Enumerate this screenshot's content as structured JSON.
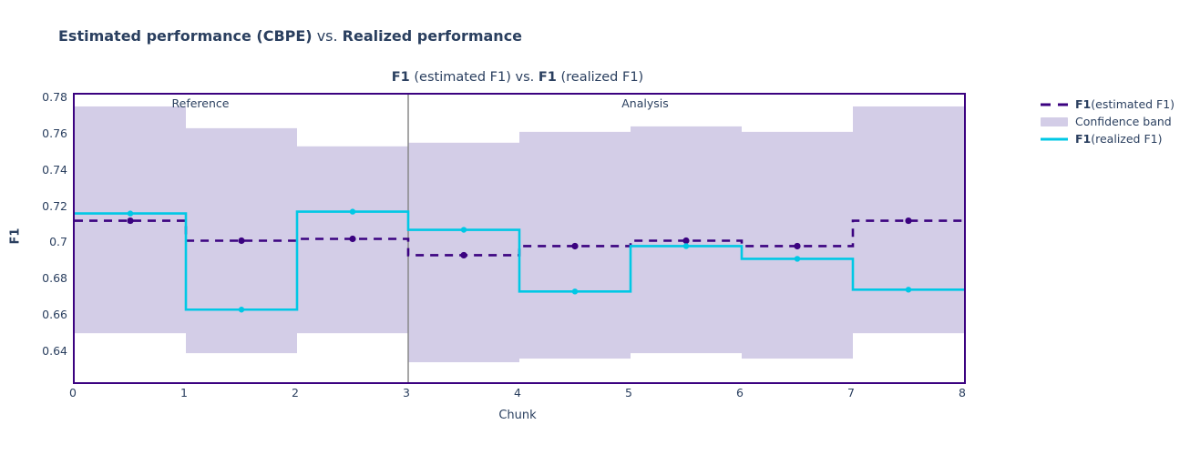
{
  "header": {
    "title_bold_left": "Estimated performance (CBPE)",
    "title_separator": " vs. ",
    "title_bold_right": "Realized performance"
  },
  "chart": {
    "title_metric_left": "F1",
    "title_middle": " (estimated F1) vs. ",
    "title_metric_right": "F1",
    "title_suffix": " (realized F1)",
    "xlabel": "Chunk",
    "ylabel": "F1"
  },
  "legend": {
    "items": [
      {
        "key": "estimated",
        "swatch": "dashed-line",
        "color": "#3b0280",
        "label_bold": "F1",
        "label_rest": " (estimated F1)"
      },
      {
        "key": "confidence-band",
        "swatch": "band",
        "color": "#d3cde7",
        "label_bold": "",
        "label_rest": "Confidence band"
      },
      {
        "key": "realized",
        "swatch": "solid-line",
        "color": "#00c8e5",
        "label_bold": "F1",
        "label_rest": " (realized F1)"
      }
    ]
  },
  "chart_data": {
    "type": "line",
    "subtype": "step-plot-with-confidence-band",
    "title": "F1 (estimated F1) vs. F1 (realized F1)",
    "xlabel": "Chunk",
    "ylabel": "F1",
    "xlim": [
      0,
      8
    ],
    "ylim": [
      0.624,
      0.7825
    ],
    "x_ticks": [
      {
        "label": "0",
        "value": 0
      },
      {
        "label": "1",
        "value": 1
      },
      {
        "label": "2",
        "value": 2
      },
      {
        "label": "3",
        "value": 3
      },
      {
        "label": "4",
        "value": 4
      },
      {
        "label": "5",
        "value": 5
      },
      {
        "label": "6",
        "value": 6
      },
      {
        "label": "7",
        "value": 7
      },
      {
        "label": "8",
        "value": 8
      }
    ],
    "y_ticks": [
      {
        "label": "0.78",
        "value": 0.78
      },
      {
        "label": "0.76",
        "value": 0.76
      },
      {
        "label": "0.74",
        "value": 0.74
      },
      {
        "label": "0.72",
        "value": 0.72
      },
      {
        "label": "0.7",
        "value": 0.7
      },
      {
        "label": "0.68",
        "value": 0.68
      },
      {
        "label": "0.66",
        "value": 0.66
      },
      {
        "label": "0.64",
        "value": 0.64
      }
    ],
    "regions": [
      {
        "label": "Reference",
        "start": 0,
        "end": 3
      },
      {
        "label": "Analysis",
        "start": 3,
        "end": 8
      }
    ],
    "divider_x": 3,
    "chunk_midpoints": [
      0.5,
      1.5,
      2.5,
      3.5,
      4.5,
      5.5,
      6.5,
      7.5
    ],
    "series": [
      {
        "key": "estimated",
        "name": "F1 (estimated F1)",
        "color": "#3b0280",
        "dash": true,
        "values": [
          0.713,
          0.702,
          0.703,
          0.694,
          0.699,
          0.702,
          0.699,
          0.713
        ]
      },
      {
        "key": "realized",
        "name": "F1 (realized F1)",
        "color": "#00c8e5",
        "dash": false,
        "values": [
          0.717,
          0.664,
          0.718,
          0.708,
          0.674,
          0.699,
          0.692,
          0.675
        ]
      }
    ],
    "confidence_band": {
      "name": "Confidence band",
      "color": "#d3cde7",
      "upper": [
        0.776,
        0.764,
        0.754,
        0.756,
        0.762,
        0.765,
        0.762,
        0.776
      ],
      "lower": [
        0.651,
        0.64,
        0.651,
        0.635,
        0.637,
        0.64,
        0.637,
        0.651
      ]
    },
    "frame_color": "#3b0280",
    "divider_color": "#888888",
    "text_color": "#2a3f5f"
  }
}
